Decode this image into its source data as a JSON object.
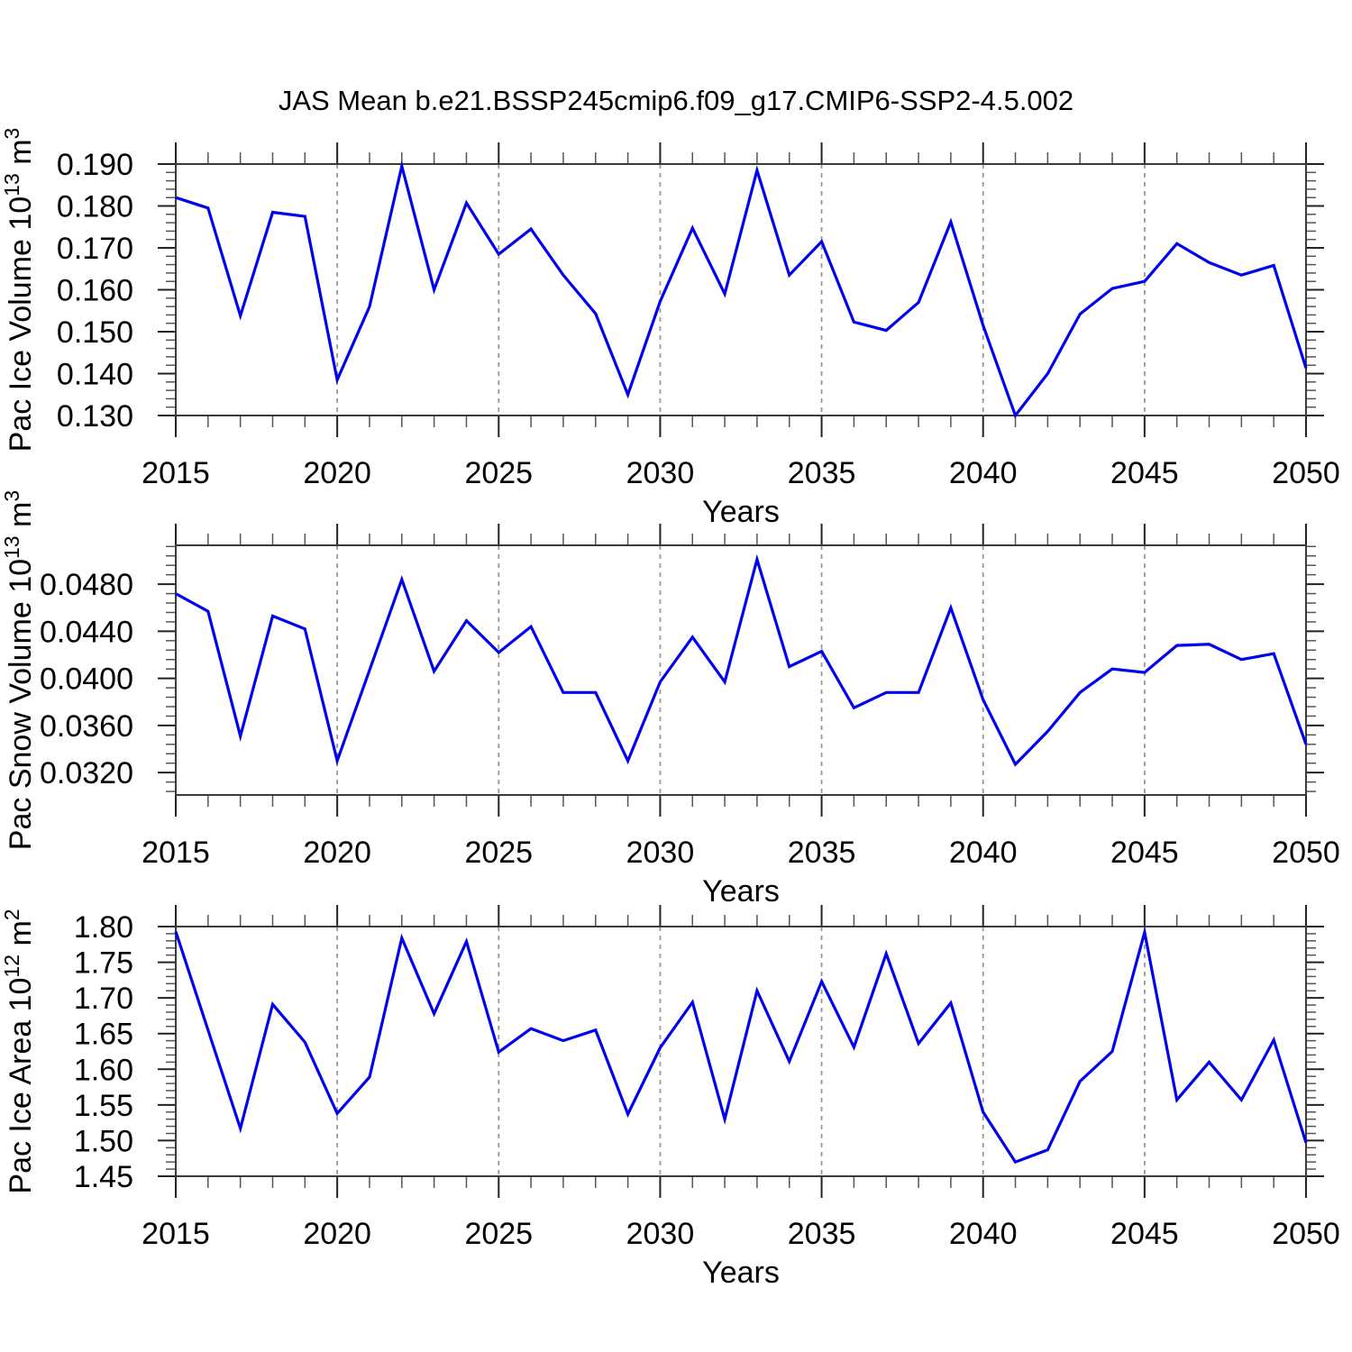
{
  "title": "JAS Mean b.e21.BSSP245cmip6.f09_g17.CMIP6-SSP2-4.5.002",
  "colors": {
    "line": "#0000ee",
    "grid": "#999999",
    "axis": "#3a3a3a",
    "tick_major": "#222222",
    "tick_minor": "#555555",
    "text": "#000000",
    "background": "#ffffff"
  },
  "x_axis": {
    "label": "Years",
    "tick_labels": [
      "2015",
      "2020",
      "2025",
      "2030",
      "2035",
      "2040",
      "2045",
      "2050"
    ],
    "tick_values": [
      2015,
      2020,
      2025,
      2030,
      2035,
      2040,
      2045,
      2050
    ],
    "minor_step": 1,
    "grid_years": [
      2020,
      2025,
      2030,
      2035,
      2040,
      2045
    ],
    "range": [
      2015,
      2050
    ]
  },
  "years": [
    2015,
    2016,
    2017,
    2018,
    2019,
    2020,
    2021,
    2022,
    2023,
    2024,
    2025,
    2026,
    2027,
    2028,
    2029,
    2030,
    2031,
    2032,
    2033,
    2034,
    2035,
    2036,
    2037,
    2038,
    2039,
    2040,
    2041,
    2042,
    2043,
    2044,
    2045,
    2046,
    2047,
    2048,
    2049,
    2050
  ],
  "chart_data": [
    {
      "id": "pac-ice-volume",
      "type": "line",
      "title": "",
      "xlabel": "Years",
      "ylabel": "Pac Ice Volume 10¹³ m³",
      "ylabel_runs": [
        {
          "t": "Pac Ice Volume 10"
        },
        {
          "t": "13",
          "sup": true
        },
        {
          "t": " m"
        },
        {
          "t": "3",
          "sup": true
        }
      ],
      "ylim": [
        0.13,
        0.19
      ],
      "yticks": [
        {
          "v": 0.19,
          "label": "0.190"
        },
        {
          "v": 0.18,
          "label": "0.180"
        },
        {
          "v": 0.17,
          "label": "0.170"
        },
        {
          "v": 0.16,
          "label": "0.160"
        },
        {
          "v": 0.15,
          "label": "0.150"
        },
        {
          "v": 0.14,
          "label": "0.140"
        },
        {
          "v": 0.13,
          "label": "0.130"
        }
      ],
      "y_minor_step": 0.002,
      "x": [
        2015,
        2016,
        2017,
        2018,
        2019,
        2020,
        2021,
        2022,
        2023,
        2024,
        2025,
        2026,
        2027,
        2028,
        2029,
        2030,
        2031,
        2032,
        2033,
        2034,
        2035,
        2036,
        2037,
        2038,
        2039,
        2040,
        2041,
        2042,
        2043,
        2044,
        2045,
        2046,
        2047,
        2048,
        2049,
        2050
      ],
      "values": [
        0.182,
        0.1795,
        0.1538,
        0.1785,
        0.1775,
        0.1385,
        0.156,
        0.1895,
        0.16,
        0.1807,
        0.1685,
        0.1745,
        0.1635,
        0.1543,
        0.135,
        0.1572,
        0.1747,
        0.159,
        0.1885,
        0.1635,
        0.1715,
        0.1523,
        0.1503,
        0.157,
        0.1762,
        0.1515,
        0.13,
        0.14,
        0.1542,
        0.1603,
        0.162,
        0.171,
        0.1665,
        0.1635,
        0.1658,
        0.1413
      ]
    },
    {
      "id": "pac-snow-volume",
      "type": "line",
      "title": "",
      "xlabel": "Years",
      "ylabel": "Pac Snow Volume 10¹³ m³",
      "ylabel_runs": [
        {
          "t": "Pac Snow Volume 10"
        },
        {
          "t": "13",
          "sup": true
        },
        {
          "t": " m"
        },
        {
          "t": "3",
          "sup": true
        }
      ],
      "ylim": [
        0.0301,
        0.0513
      ],
      "yticks": [
        {
          "v": 0.048,
          "label": "0.0480"
        },
        {
          "v": 0.044,
          "label": "0.0440"
        },
        {
          "v": 0.04,
          "label": "0.0400"
        },
        {
          "v": 0.036,
          "label": "0.0360"
        },
        {
          "v": 0.032,
          "label": "0.0320"
        }
      ],
      "y_minor_step": 0.0008,
      "x": [
        2015,
        2016,
        2017,
        2018,
        2019,
        2020,
        2021,
        2022,
        2023,
        2024,
        2025,
        2026,
        2027,
        2028,
        2029,
        2030,
        2031,
        2032,
        2033,
        2034,
        2035,
        2036,
        2037,
        2038,
        2039,
        2040,
        2041,
        2042,
        2043,
        2044,
        2045,
        2046,
        2047,
        2048,
        2049,
        2050
      ],
      "values": [
        0.0472,
        0.0457,
        0.0351,
        0.0453,
        0.0442,
        0.033,
        0.0407,
        0.0484,
        0.0406,
        0.0449,
        0.0422,
        0.0444,
        0.0388,
        0.0388,
        0.033,
        0.0397,
        0.0435,
        0.0397,
        0.0501,
        0.041,
        0.0423,
        0.0375,
        0.0388,
        0.0388,
        0.046,
        0.0382,
        0.0327,
        0.0355,
        0.0388,
        0.0408,
        0.0405,
        0.0428,
        0.0429,
        0.0416,
        0.0421,
        0.0344
      ]
    },
    {
      "id": "pac-ice-area",
      "type": "line",
      "title": "",
      "xlabel": "Years",
      "ylabel": "Pac Ice Area 10¹² m²",
      "ylabel_runs": [
        {
          "t": "Pac Ice Area 10"
        },
        {
          "t": "12",
          "sup": true
        },
        {
          "t": " m"
        },
        {
          "t": "2",
          "sup": true
        }
      ],
      "ylim": [
        1.45,
        1.8
      ],
      "yticks": [
        {
          "v": 1.8,
          "label": "1.80"
        },
        {
          "v": 1.75,
          "label": "1.75"
        },
        {
          "v": 1.7,
          "label": "1.70"
        },
        {
          "v": 1.65,
          "label": "1.65"
        },
        {
          "v": 1.6,
          "label": "1.60"
        },
        {
          "v": 1.55,
          "label": "1.55"
        },
        {
          "v": 1.5,
          "label": "1.50"
        },
        {
          "v": 1.45,
          "label": "1.45"
        }
      ],
      "y_minor_step": 0.01,
      "x": [
        2015,
        2016,
        2017,
        2018,
        2019,
        2020,
        2021,
        2022,
        2023,
        2024,
        2025,
        2026,
        2027,
        2028,
        2029,
        2030,
        2031,
        2032,
        2033,
        2034,
        2035,
        2036,
        2037,
        2038,
        2039,
        2040,
        2041,
        2042,
        2043,
        2044,
        2045,
        2046,
        2047,
        2048,
        2049,
        2050
      ],
      "values": [
        1.793,
        1.655,
        1.517,
        1.691,
        1.638,
        1.538,
        1.589,
        1.784,
        1.678,
        1.779,
        1.624,
        1.657,
        1.64,
        1.655,
        1.537,
        1.63,
        1.694,
        1.53,
        1.71,
        1.611,
        1.723,
        1.631,
        1.762,
        1.636,
        1.693,
        1.54,
        1.47,
        1.487,
        1.583,
        1.625,
        1.792,
        1.557,
        1.61,
        1.557,
        1.641,
        1.497
      ]
    }
  ]
}
